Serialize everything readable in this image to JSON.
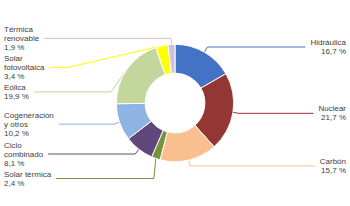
{
  "chart_data": {
    "type": "donut",
    "categories": [
      "Hidráulica",
      "Nuclear",
      "Carbón",
      "Solar térmica",
      "Ciclo\ncombinado",
      "Cogeneración\ny otros",
      "Eólica",
      "Solar\nfotovoltaica",
      "Térmica\nrenovable"
    ],
    "values": [
      16.7,
      21.7,
      15.7,
      2.4,
      8.1,
      10.2,
      19.9,
      3.4,
      1.9
    ],
    "value_labels": [
      "16,7 %",
      "21,7 %",
      "15,7 %",
      "2,4 %",
      "8,1 %",
      "10,2 %",
      "19,9 %",
      "3,4 %",
      "1,9 %"
    ],
    "colors": [
      "#4472C4",
      "#943634",
      "#FABF8F",
      "#76923C",
      "#60497A",
      "#8DB4E2",
      "#C3D69B",
      "#FFFF00",
      "#CCC0DA"
    ],
    "data_labels": true
  }
}
